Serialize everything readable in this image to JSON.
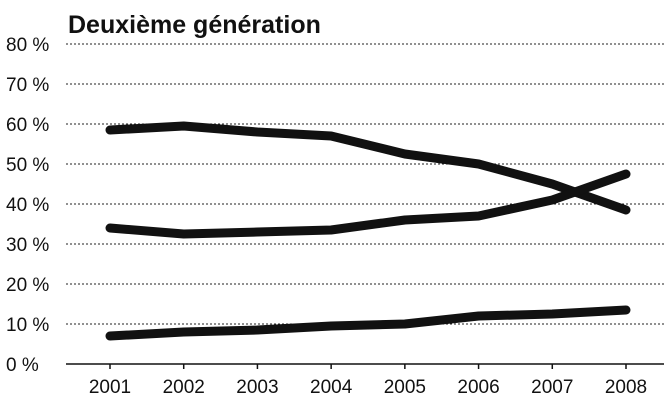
{
  "chart_data": {
    "type": "line",
    "title": "Deuxième génération",
    "xlabel": "",
    "ylabel": "",
    "x": [
      "2001",
      "2002",
      "2003",
      "2004",
      "2005",
      "2006",
      "2007",
      "2008"
    ],
    "ylim": [
      0,
      80
    ],
    "y_ticks": [
      0,
      10,
      20,
      30,
      40,
      50,
      60,
      70,
      80
    ],
    "y_tick_labels": [
      "0 %",
      "10 %",
      "20 %",
      "30 %",
      "40 %",
      "50 %",
      "60 %",
      "70 %",
      "80 %"
    ],
    "grid": true,
    "legend": "none",
    "series": [
      {
        "values": [
          58.5,
          59.5,
          58,
          57,
          52.5,
          50,
          45,
          38.5
        ]
      },
      {
        "values": [
          34,
          32.5,
          33,
          33.5,
          36,
          37,
          41,
          47.5
        ]
      },
      {
        "values": [
          7,
          8,
          8.5,
          9.5,
          10,
          12,
          12.5,
          13.5
        ]
      }
    ],
    "colors": {
      "line": "#111111",
      "grid": "#222222",
      "background": "#ffffff"
    }
  }
}
